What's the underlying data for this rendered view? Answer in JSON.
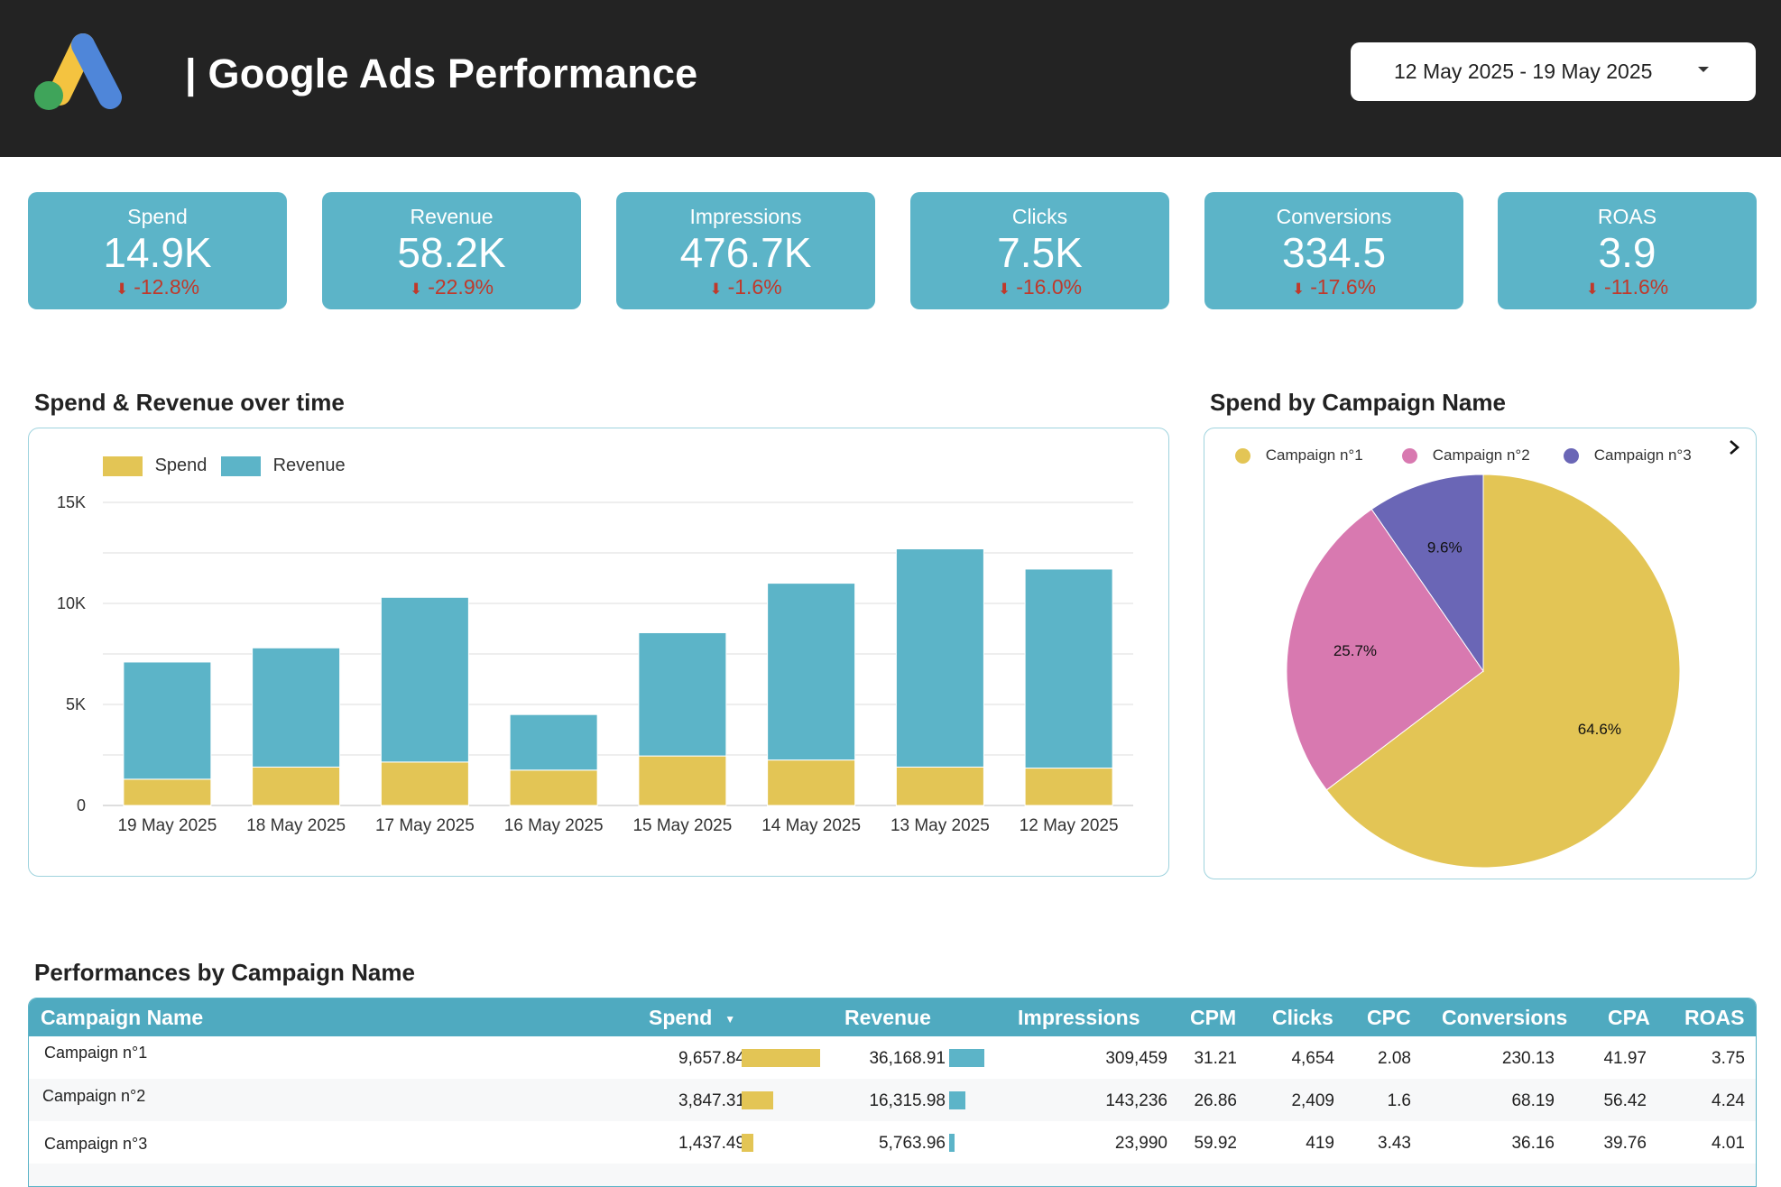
{
  "header": {
    "title": "| Google Ads Performance",
    "date_range": "12 May 2025 - 19 May 2025"
  },
  "colors": {
    "spend": "#e3c555",
    "revenue": "#5cb4c8",
    "campaign_1": "#e3c555",
    "campaign_2": "#d879b0",
    "campaign_3": "#6a66b6",
    "negative": "#c0392b"
  },
  "kpis": [
    {
      "label": "Spend",
      "value": "14.9K",
      "delta": "-12.8%"
    },
    {
      "label": "Revenue",
      "value": "58.2K",
      "delta": "-22.9%"
    },
    {
      "label": "Impressions",
      "value": "476.7K",
      "delta": "-1.6%"
    },
    {
      "label": "Clicks",
      "value": "7.5K",
      "delta": "-16.0%"
    },
    {
      "label": "Conversions",
      "value": "334.5",
      "delta": "-17.6%"
    },
    {
      "label": "ROAS",
      "value": "3.9",
      "delta": "-11.6%"
    }
  ],
  "bar_section": {
    "title": "Spend & Revenue over time"
  },
  "pie_section": {
    "title": "Spend by Campaign Name"
  },
  "table_section": {
    "title": "Performances by Campaign Name"
  },
  "chart_data": [
    {
      "type": "bar",
      "stacked": true,
      "title": "Spend & Revenue over time",
      "categories": [
        "19 May 2025",
        "18 May 2025",
        "17 May 2025",
        "16 May 2025",
        "15 May 2025",
        "14 May 2025",
        "13 May 2025",
        "12 May 2025"
      ],
      "series": [
        {
          "name": "Spend",
          "values": [
            1300,
            1900,
            2150,
            1750,
            2450,
            2250,
            1900,
            1850
          ]
        },
        {
          "name": "Revenue",
          "values": [
            5800,
            5900,
            8150,
            2750,
            6100,
            8750,
            10800,
            9850
          ]
        }
      ],
      "ylim": [
        0,
        15000
      ],
      "yticks": [
        "0",
        "5K",
        "10K",
        "15K"
      ],
      "grid": true,
      "legend": "top-left"
    },
    {
      "type": "pie",
      "title": "Spend by Campaign Name",
      "labels": [
        "Campaign n°1",
        "Campaign n°2",
        "Campaign n°3"
      ],
      "values": [
        64.6,
        25.7,
        9.6
      ],
      "value_labels": [
        "64.6%",
        "25.7%",
        "9.6%"
      ],
      "legend": "top"
    }
  ],
  "table": {
    "headers": [
      "Campaign Name",
      "Spend",
      "Revenue",
      "Impressions",
      "CPM",
      "Clicks",
      "CPC",
      "Conversions",
      "CPA",
      "ROAS"
    ],
    "sort_indicator": "▼",
    "spend_max": 9657.84,
    "revenue_max": 36168.91,
    "rows": [
      {
        "name": "Campaign n°1",
        "spend": "9,657.84",
        "spend_value": 9657.84,
        "revenue": "36,168.91",
        "revenue_value": 36168.91,
        "impressions": "309,459",
        "cpm": "31.21",
        "clicks": "4,654",
        "cpc": "2.08",
        "conversions": "230.13",
        "cpa": "41.97",
        "roas": "3.75"
      },
      {
        "name": "Campaign n°2",
        "spend": "3,847.31",
        "spend_value": 3847.31,
        "revenue": "16,315.98",
        "revenue_value": 16315.98,
        "impressions": "143,236",
        "cpm": "26.86",
        "clicks": "2,409",
        "cpc": "1.6",
        "conversions": "68.19",
        "cpa": "56.42",
        "roas": "4.24"
      },
      {
        "name": "Campaign n°3",
        "spend": "1,437.49",
        "spend_value": 1437.49,
        "revenue": "5,763.96",
        "revenue_value": 5763.96,
        "impressions": "23,990",
        "cpm": "59.92",
        "clicks": "419",
        "cpc": "3.43",
        "conversions": "36.16",
        "cpa": "39.76",
        "roas": "4.01"
      }
    ]
  }
}
